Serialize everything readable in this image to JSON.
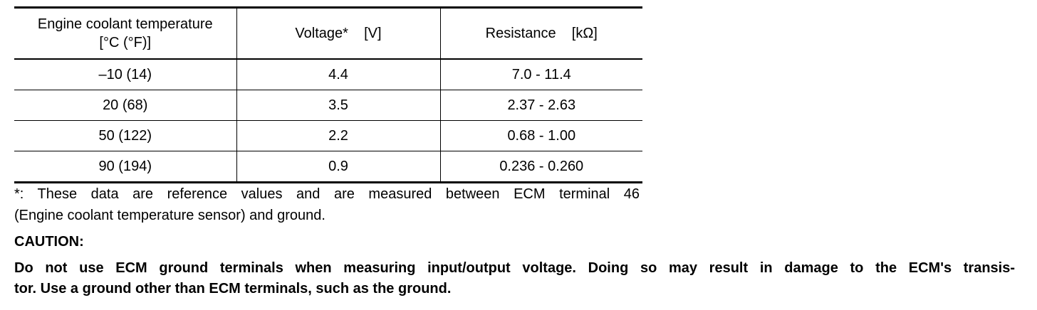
{
  "table": {
    "header": [
      [
        "Engine coolant temperature",
        "[°C (°F)]"
      ],
      [
        "Voltage*    [V]"
      ],
      [
        "Resistance    [kΩ]"
      ]
    ],
    "rows": [
      [
        "–10 (14)",
        "4.4",
        "7.0 - 11.4"
      ],
      [
        "20 (68)",
        "3.5",
        "2.37 - 2.63"
      ],
      [
        "50 (122)",
        "2.2",
        "0.68 - 1.00"
      ],
      [
        "90 (194)",
        "0.9",
        "0.236 - 0.260"
      ]
    ]
  },
  "footnote": [
    "*: These data are reference values and are measured between ECM terminal 46",
    "(Engine coolant temperature sensor) and ground."
  ],
  "caution": {
    "title": "CAUTION:",
    "lines": [
      "Do not use ECM ground terminals when measuring input/output voltage. Doing so may result in damage to the ECM's transis-",
      "tor. Use a ground other than ECM terminals, such as the ground."
    ]
  }
}
